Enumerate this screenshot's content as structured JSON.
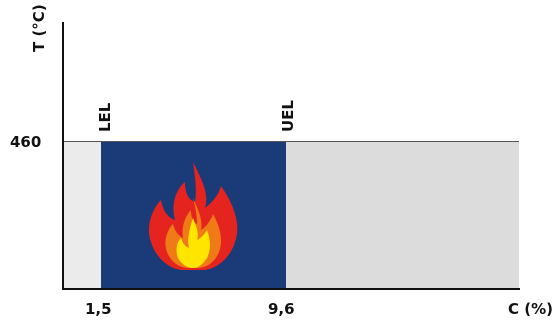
{
  "axes": {
    "y_label": "T (°C)",
    "x_label": "C (%)"
  },
  "ticks": {
    "temperature": "460",
    "lel_value": "1,5",
    "uel_value": "9,6"
  },
  "markers": {
    "lel": "LEL",
    "uel": "UEL"
  },
  "colors": {
    "left_zone": "#ebebeb",
    "flammable_zone": "#1b3a78",
    "right_zone": "#dcdcdc",
    "flame_outer": "#e5231f",
    "flame_mid": "#f07a18",
    "flame_inner": "#ffe500"
  },
  "icons": {
    "flame": "flame-icon"
  }
}
